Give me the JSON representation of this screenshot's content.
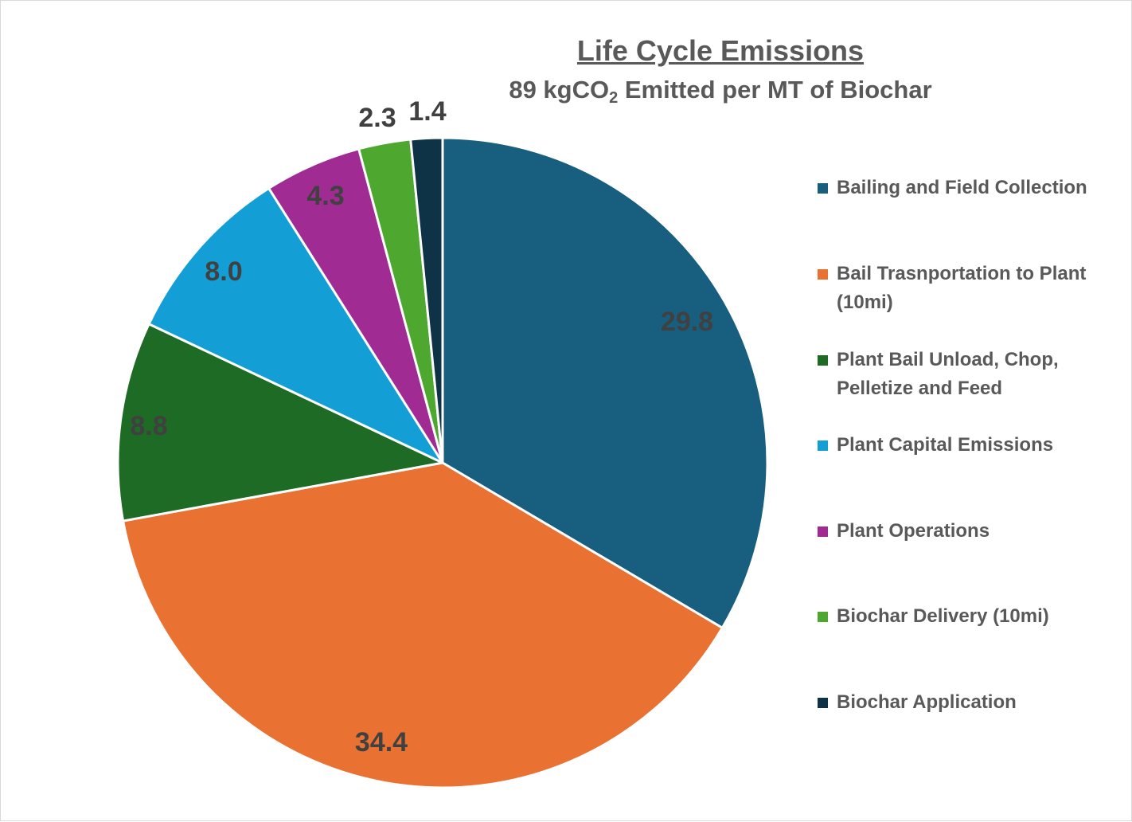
{
  "chart_data": {
    "type": "pie",
    "title": "Life Cycle Emissions",
    "subtitle": {
      "prefix": "89 kgCO",
      "subscript": "2",
      "suffix": " Emitted per MT of Biochar"
    },
    "start_angle_deg": 0,
    "direction": "clockwise",
    "legend_position": "right",
    "slices": [
      {
        "label": "Bailing and Field Collection",
        "value": 29.8,
        "value_text": "29.8",
        "color": "#185E7F",
        "label_color": "#404040"
      },
      {
        "label": "Bail Trasnportation to Plant (10mi)",
        "value": 34.4,
        "value_text": "34.4",
        "color": "#E97132",
        "label_color": "#404040"
      },
      {
        "label": "Plant Bail Unload, Chop, Pelletize and Feed",
        "value": 8.8,
        "value_text": "8.8",
        "color": "#1D6B24",
        "label_color": "#404040"
      },
      {
        "label": "Plant Capital Emissions",
        "value": 8.0,
        "value_text": "8.0",
        "color": "#139FD6",
        "label_color": "#404040"
      },
      {
        "label": "Plant Operations",
        "value": 4.3,
        "value_text": "4.3",
        "color": "#A02B93",
        "label_color": "#404040"
      },
      {
        "label": "Biochar Delivery (10mi)",
        "value": 2.3,
        "value_text": "2.3",
        "color": "#4EA72E",
        "label_color": "#404040"
      },
      {
        "label": "Biochar Application",
        "value": 1.4,
        "value_text": "1.4",
        "color": "#0E3347",
        "label_color": "#404040"
      }
    ]
  }
}
